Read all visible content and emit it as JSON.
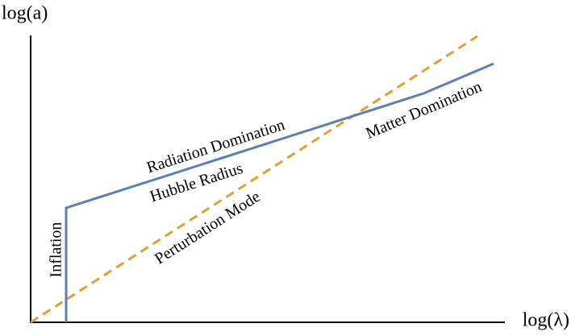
{
  "axes": {
    "y_label": "log(a)",
    "x_label": "log(λ)"
  },
  "labels": {
    "inflation": "Inflation",
    "radiation": "Radiation Domination",
    "hubble": "Hubble Radius",
    "perturbation": "Perturbation Mode",
    "matter": "Matter Domination"
  }
}
